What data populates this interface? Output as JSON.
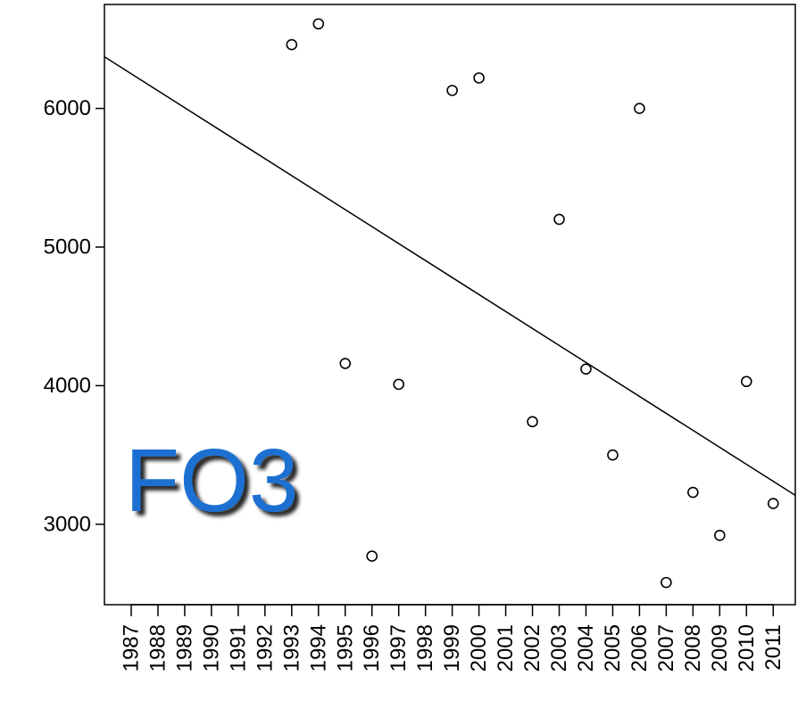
{
  "chart_data": {
    "type": "scatter",
    "title": "",
    "xlabel": "",
    "ylabel": "",
    "x_categories": [
      "1987",
      "1988",
      "1989",
      "1990",
      "1991",
      "1992",
      "1993",
      "1994",
      "1995",
      "1996",
      "1997",
      "1998",
      "1999",
      "2000",
      "2001",
      "2002",
      "2003",
      "2004",
      "2005",
      "2006",
      "2007",
      "2008",
      "2009",
      "2010",
      "2011"
    ],
    "yticks": [
      3000,
      4000,
      5000,
      6000
    ],
    "ylim": [
      2420,
      6750
    ],
    "points": [
      {
        "x": "1993",
        "y": 6460
      },
      {
        "x": "1994",
        "y": 6610
      },
      {
        "x": "1995",
        "y": 4160
      },
      {
        "x": "1996",
        "y": 2770
      },
      {
        "x": "1997",
        "y": 4010
      },
      {
        "x": "1999",
        "y": 6130
      },
      {
        "x": "2000",
        "y": 6220
      },
      {
        "x": "2002",
        "y": 3740
      },
      {
        "x": "2003",
        "y": 5200
      },
      {
        "x": "2004",
        "y": 4120
      },
      {
        "x": "2005",
        "y": 3500
      },
      {
        "x": "2006",
        "y": 6000
      },
      {
        "x": "2007",
        "y": 2580
      },
      {
        "x": "2008",
        "y": 3230
      },
      {
        "x": "2009",
        "y": 2920
      },
      {
        "x": "2010",
        "y": 4030
      },
      {
        "x": "2011",
        "y": 3150
      }
    ],
    "trend_line": {
      "x_start": "1987",
      "y_start": 6250,
      "x_end": "2011",
      "y_end": 3310
    },
    "grid": false,
    "legend": "none"
  },
  "overlay": {
    "label": "FO3",
    "color": "#1a6fd1",
    "shadow_color": "#000000"
  }
}
